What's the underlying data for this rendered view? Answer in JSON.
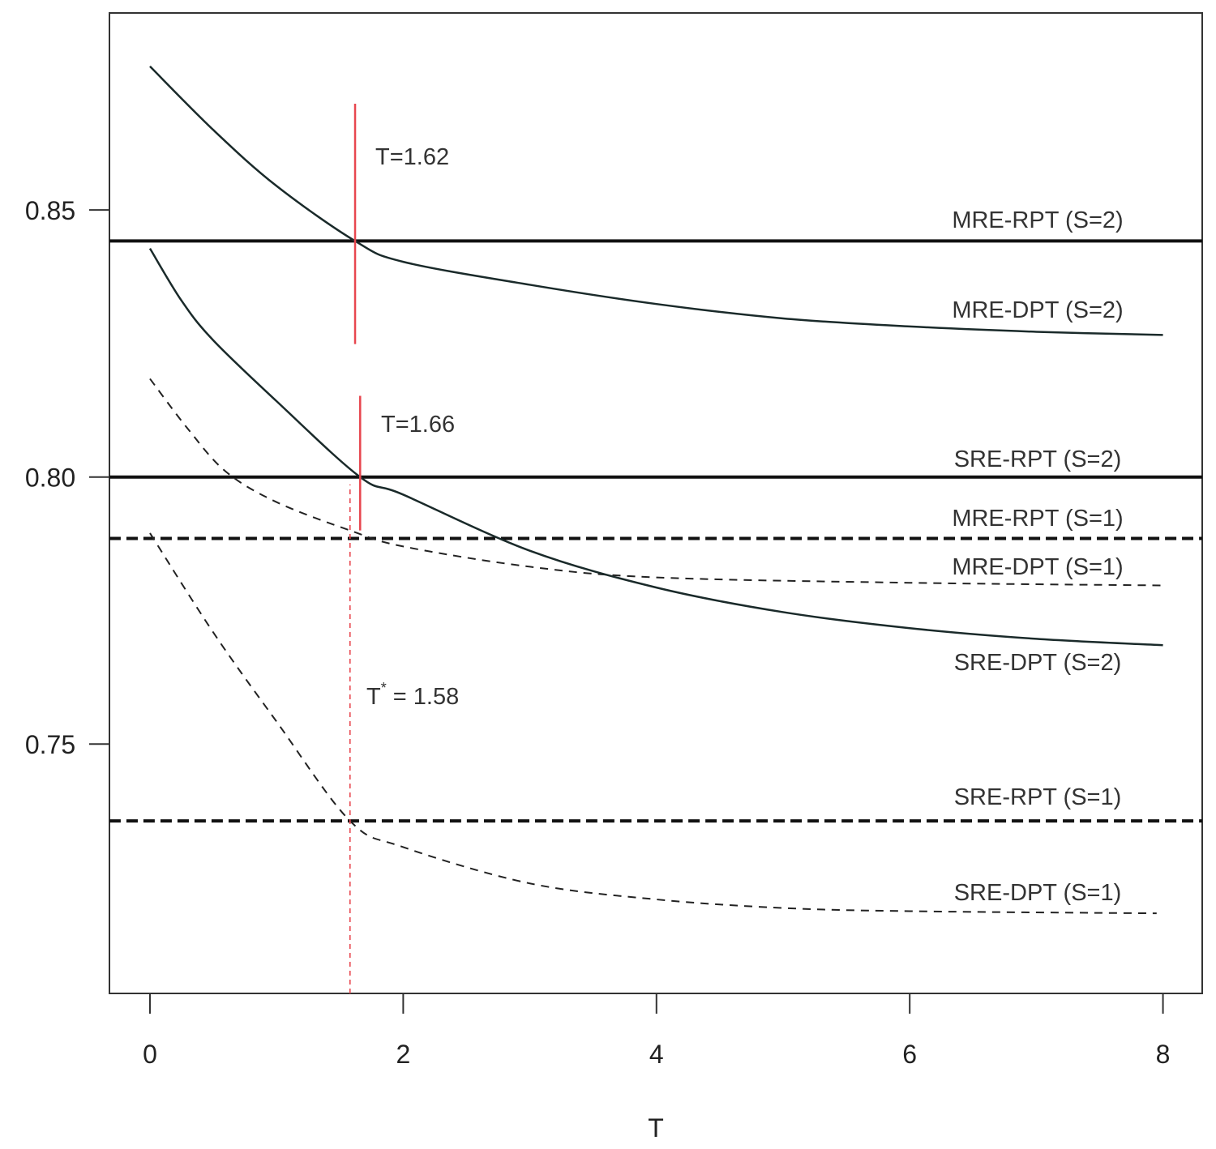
{
  "chart_data": {
    "type": "line",
    "title": "",
    "xlabel": "T",
    "ylabel": "",
    "xlim": [
      -0.32,
      8.31
    ],
    "ylim": [
      0.7033,
      0.8869
    ],
    "xticks": [
      0,
      2,
      4,
      6,
      8
    ],
    "xtick_labels": [
      "0",
      "2",
      "4",
      "6",
      "8"
    ],
    "yticks": [
      0.75,
      0.8,
      0.85
    ],
    "ytick_labels": [
      "0.75",
      "0.80",
      "0.85"
    ],
    "grid": false,
    "series": [
      {
        "name": "MRE-RPT (S=2)",
        "style": "solid-thick",
        "color": "#111111",
        "x": [
          -0.32,
          8.31
        ],
        "y": [
          0.8442,
          0.8442
        ]
      },
      {
        "name": "MRE-DPT (S=2)",
        "style": "solid",
        "color": "#1a2a2a",
        "x": [
          0,
          0.5,
          1,
          1.62,
          2,
          3,
          4,
          5,
          6,
          7,
          8
        ],
        "y": [
          0.8769,
          0.865,
          0.8545,
          0.8442,
          0.8403,
          0.836,
          0.8324,
          0.8297,
          0.8282,
          0.8272,
          0.8266
        ]
      },
      {
        "name": "SRE-RPT (S=2)",
        "style": "solid-thick",
        "color": "#111111",
        "x": [
          -0.32,
          8.31
        ],
        "y": [
          0.8,
          0.8
        ]
      },
      {
        "name": "MRE-RPT (S=1)",
        "style": "dashed-thick",
        "color": "#111111",
        "x": [
          -0.32,
          8.31
        ],
        "y": [
          0.7885,
          0.7885
        ]
      },
      {
        "name": "MRE-DPT (S=1)",
        "style": "dashed",
        "color": "#222222",
        "x": [
          0,
          0.3,
          0.6,
          1,
          1.58,
          2,
          3,
          4,
          6,
          8
        ],
        "y": [
          0.8184,
          0.809,
          0.801,
          0.7953,
          0.79,
          0.787,
          0.7832,
          0.7812,
          0.7802,
          0.7797
        ]
      },
      {
        "name": "SRE-DPT (S=2)",
        "style": "solid",
        "color": "#1a2a2a",
        "x": [
          0,
          0.25,
          0.5,
          1,
          1.66,
          2,
          3,
          4,
          5,
          6,
          7,
          8
        ],
        "y": [
          0.8428,
          0.833,
          0.8256,
          0.8142,
          0.8,
          0.7967,
          0.7862,
          0.7793,
          0.7747,
          0.7717,
          0.7697,
          0.7685
        ]
      },
      {
        "name": "SRE-RPT (S=1)",
        "style": "dashed-thick",
        "color": "#111111",
        "x": [
          -0.32,
          8.31
        ],
        "y": [
          0.7356,
          0.7356
        ]
      },
      {
        "name": "SRE-DPT (S=1)",
        "style": "dashed",
        "color": "#222222",
        "x": [
          0,
          0.5,
          1,
          1.58,
          2,
          3,
          4,
          5,
          6,
          7.95
        ],
        "y": [
          0.7895,
          0.7709,
          0.7542,
          0.7356,
          0.7307,
          0.7239,
          0.7209,
          0.7193,
          0.7187,
          0.7183
        ]
      }
    ],
    "reference_lines": [
      {
        "name": "T=1.62",
        "x": 1.62,
        "y": [
          0.8249,
          0.8699
        ],
        "style": "solid",
        "color": "#e8474f"
      },
      {
        "name": "T=1.66",
        "x": 1.66,
        "y": [
          0.79,
          0.8152
        ],
        "style": "solid",
        "color": "#e8474f"
      },
      {
        "name": "T* = 1.58",
        "x": 1.58,
        "y": [
          0.7033,
          0.7986
        ],
        "style": "dotted",
        "color": "#e8474f"
      }
    ],
    "annotations": {
      "t162": "T=1.62",
      "t166": "T=1.66",
      "tstar_base": "T",
      "tstar_sup": "*",
      "tstar_value": " = 1.58"
    }
  }
}
